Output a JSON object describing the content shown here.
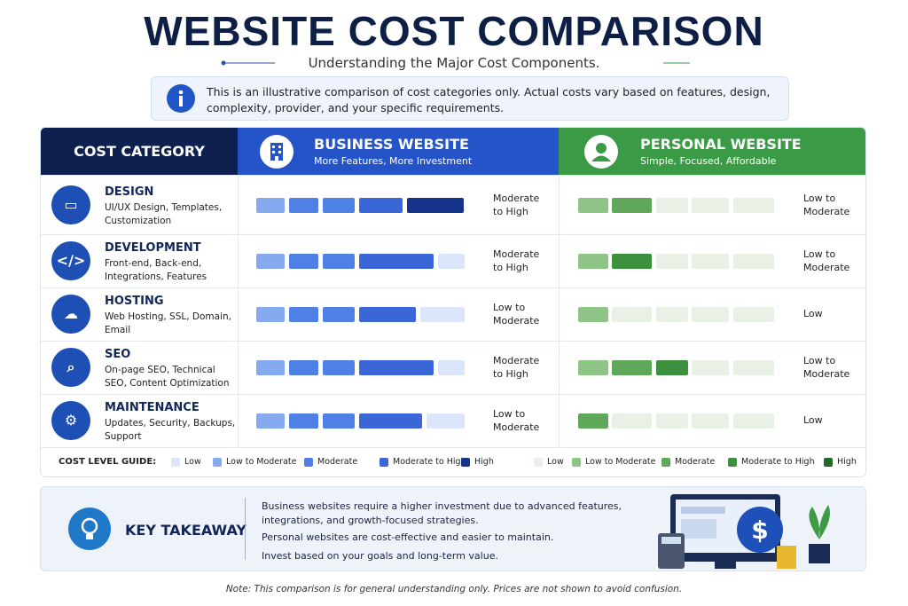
{
  "header": {
    "title": "WEBSITE COST COMPARISON",
    "subtitle": "Understanding the Major Cost Components."
  },
  "notice": "This is an illustrative comparison of cost categories only. Actual costs vary based on features, design, complexity, provider, and your specific requirements.",
  "table": {
    "category_header": "COST CATEGORY",
    "business": {
      "title": "BUSINESS WEBSITE",
      "subtitle": "More Features, More Investment"
    },
    "personal": {
      "title": "PERSONAL WEBSITE",
      "subtitle": "Simple, Focused, Affordable"
    },
    "rows": [
      {
        "name": "DESIGN",
        "desc": "UI/UX Design, Templates, Customization",
        "business": "Moderate to High",
        "personal": "Low to Moderate"
      },
      {
        "name": "DEVELOPMENT",
        "desc": "Front-end, Back-end, Integrations, Features",
        "business": "Moderate to High",
        "personal": "Low to Moderate"
      },
      {
        "name": "HOSTING",
        "desc": "Web Hosting, SSL, Domain, Email",
        "business": "Low to Moderate",
        "personal": "Low"
      },
      {
        "name": "SEO",
        "desc": "On-page SEO, Technical SEO, Content Optimization",
        "business": "Moderate to High",
        "personal": "Low to Moderate"
      },
      {
        "name": "MAINTENANCE",
        "desc": "Updates, Security, Backups, Support",
        "business": "Low to Moderate",
        "personal": "Low"
      }
    ]
  },
  "guide": {
    "label": "COST LEVEL GUIDE:",
    "business": [
      "Low",
      "Low to Moderate",
      "Moderate",
      "Moderate to High",
      "High"
    ],
    "personal": [
      "Low",
      "Low to Moderate",
      "Moderate",
      "Moderate to High",
      "High"
    ]
  },
  "takeaway": {
    "title": "KEY TAKEAWAY",
    "lines": [
      "Business websites require a higher investment due to advanced features, integrations, and growth-focused strategies.",
      "Personal websites are cost-effective and easier to maintain.",
      "Invest based on your goals and long-term value."
    ]
  },
  "footnote": "Note: This comparison is for general understanding only. Prices are not shown to avoid confusion."
}
